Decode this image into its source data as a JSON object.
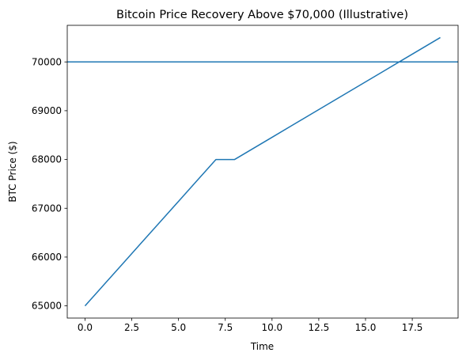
{
  "chart_data": {
    "type": "line",
    "title": "Bitcoin Price Recovery Above $70,000 (Illustrative)",
    "xlabel": "Time",
    "ylabel": "BTC Price ($)",
    "xlim": [
      -0.95,
      19.95
    ],
    "ylim": [
      64750,
      70750
    ],
    "xticks": [
      0.0,
      2.5,
      5.0,
      7.5,
      10.0,
      12.5,
      15.0,
      17.5
    ],
    "xtick_labels": [
      "0.0",
      "2.5",
      "5.0",
      "7.5",
      "10.0",
      "12.5",
      "15.0",
      "17.5"
    ],
    "yticks": [
      65000,
      66000,
      67000,
      68000,
      69000,
      70000
    ],
    "ytick_labels": [
      "65000",
      "66000",
      "67000",
      "68000",
      "69000",
      "70000"
    ],
    "grid": false,
    "series": [
      {
        "color": "#1f77b4",
        "x": [
          0,
          1,
          2,
          3,
          4,
          5,
          6,
          7,
          8,
          9,
          10,
          11,
          12,
          13,
          14,
          15,
          16,
          17,
          18,
          19
        ],
        "y": [
          65000,
          65428.57,
          65857.14,
          66285.71,
          66714.29,
          67142.86,
          67571.43,
          68000,
          68000,
          68227.27,
          68454.55,
          68681.82,
          68909.09,
          69136.36,
          69363.64,
          69590.91,
          69818.18,
          70045.45,
          70272.73,
          70500
        ]
      }
    ],
    "hline": {
      "y": 70000,
      "color": "#1f77b4"
    }
  }
}
